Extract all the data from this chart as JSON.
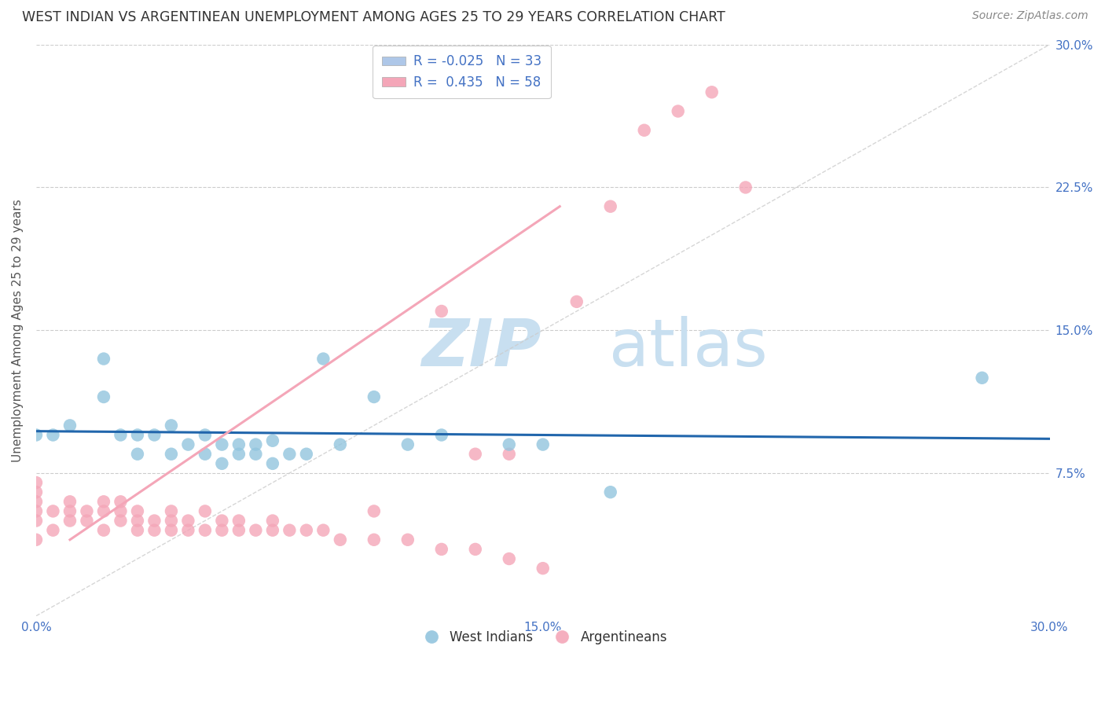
{
  "title": "WEST INDIAN VS ARGENTINEAN UNEMPLOYMENT AMONG AGES 25 TO 29 YEARS CORRELATION CHART",
  "source": "Source: ZipAtlas.com",
  "ylabel": "Unemployment Among Ages 25 to 29 years",
  "xlim": [
    0,
    0.3
  ],
  "ylim": [
    0,
    0.3
  ],
  "xtick_vals": [
    0.0,
    0.075,
    0.15,
    0.225,
    0.3
  ],
  "xtick_labels": [
    "0.0%",
    "",
    "15.0%",
    "",
    "30.0%"
  ],
  "ytick_vals": [
    0.0,
    0.075,
    0.15,
    0.225,
    0.3
  ],
  "ytick_labels": [
    "",
    "7.5%",
    "15.0%",
    "22.5%",
    "30.0%"
  ],
  "west_indian_R": "-0.025",
  "west_indian_N": "33",
  "argentinean_R": "0.435",
  "argentinean_N": "58",
  "blue_scatter_color": "#92c5de",
  "pink_scatter_color": "#f4a6b8",
  "blue_line_color": "#2166ac",
  "pink_line_color": "#d6604d",
  "blue_patch_color": "#aec7e8",
  "pink_patch_color": "#f4a6b8",
  "watermark_zip_color": "#c8dff0",
  "watermark_atlas_color": "#c8dff0",
  "wi_x": [
    0.0,
    0.005,
    0.01,
    0.02,
    0.02,
    0.025,
    0.03,
    0.03,
    0.035,
    0.04,
    0.04,
    0.045,
    0.05,
    0.05,
    0.055,
    0.055,
    0.06,
    0.06,
    0.065,
    0.065,
    0.07,
    0.07,
    0.075,
    0.08,
    0.085,
    0.09,
    0.1,
    0.11,
    0.12,
    0.14,
    0.15,
    0.17,
    0.28
  ],
  "wi_y": [
    0.095,
    0.095,
    0.1,
    0.115,
    0.135,
    0.095,
    0.085,
    0.095,
    0.095,
    0.085,
    0.1,
    0.09,
    0.085,
    0.095,
    0.08,
    0.09,
    0.09,
    0.085,
    0.085,
    0.09,
    0.08,
    0.092,
    0.085,
    0.085,
    0.135,
    0.09,
    0.115,
    0.09,
    0.095,
    0.09,
    0.09,
    0.065,
    0.125
  ],
  "arg_x": [
    0.0,
    0.0,
    0.0,
    0.0,
    0.0,
    0.0,
    0.005,
    0.005,
    0.01,
    0.01,
    0.01,
    0.015,
    0.015,
    0.02,
    0.02,
    0.02,
    0.025,
    0.025,
    0.025,
    0.03,
    0.03,
    0.03,
    0.035,
    0.035,
    0.04,
    0.04,
    0.04,
    0.045,
    0.045,
    0.05,
    0.05,
    0.055,
    0.055,
    0.06,
    0.06,
    0.065,
    0.07,
    0.07,
    0.075,
    0.08,
    0.085,
    0.09,
    0.1,
    0.1,
    0.11,
    0.12,
    0.12,
    0.13,
    0.14,
    0.14,
    0.15,
    0.16,
    0.17,
    0.18,
    0.19,
    0.2,
    0.21,
    0.13
  ],
  "arg_y": [
    0.04,
    0.05,
    0.055,
    0.06,
    0.065,
    0.07,
    0.045,
    0.055,
    0.05,
    0.055,
    0.06,
    0.05,
    0.055,
    0.045,
    0.055,
    0.06,
    0.05,
    0.055,
    0.06,
    0.045,
    0.05,
    0.055,
    0.045,
    0.05,
    0.045,
    0.05,
    0.055,
    0.045,
    0.05,
    0.045,
    0.055,
    0.045,
    0.05,
    0.045,
    0.05,
    0.045,
    0.045,
    0.05,
    0.045,
    0.045,
    0.045,
    0.04,
    0.04,
    0.055,
    0.04,
    0.035,
    0.16,
    0.035,
    0.03,
    0.085,
    0.025,
    0.165,
    0.215,
    0.255,
    0.265,
    0.275,
    0.225,
    0.085
  ],
  "pink_line_x": [
    0.01,
    0.155
  ],
  "pink_line_y": [
    0.04,
    0.215
  ],
  "blue_line_x": [
    0.0,
    0.3
  ],
  "blue_line_y": [
    0.097,
    0.093
  ]
}
